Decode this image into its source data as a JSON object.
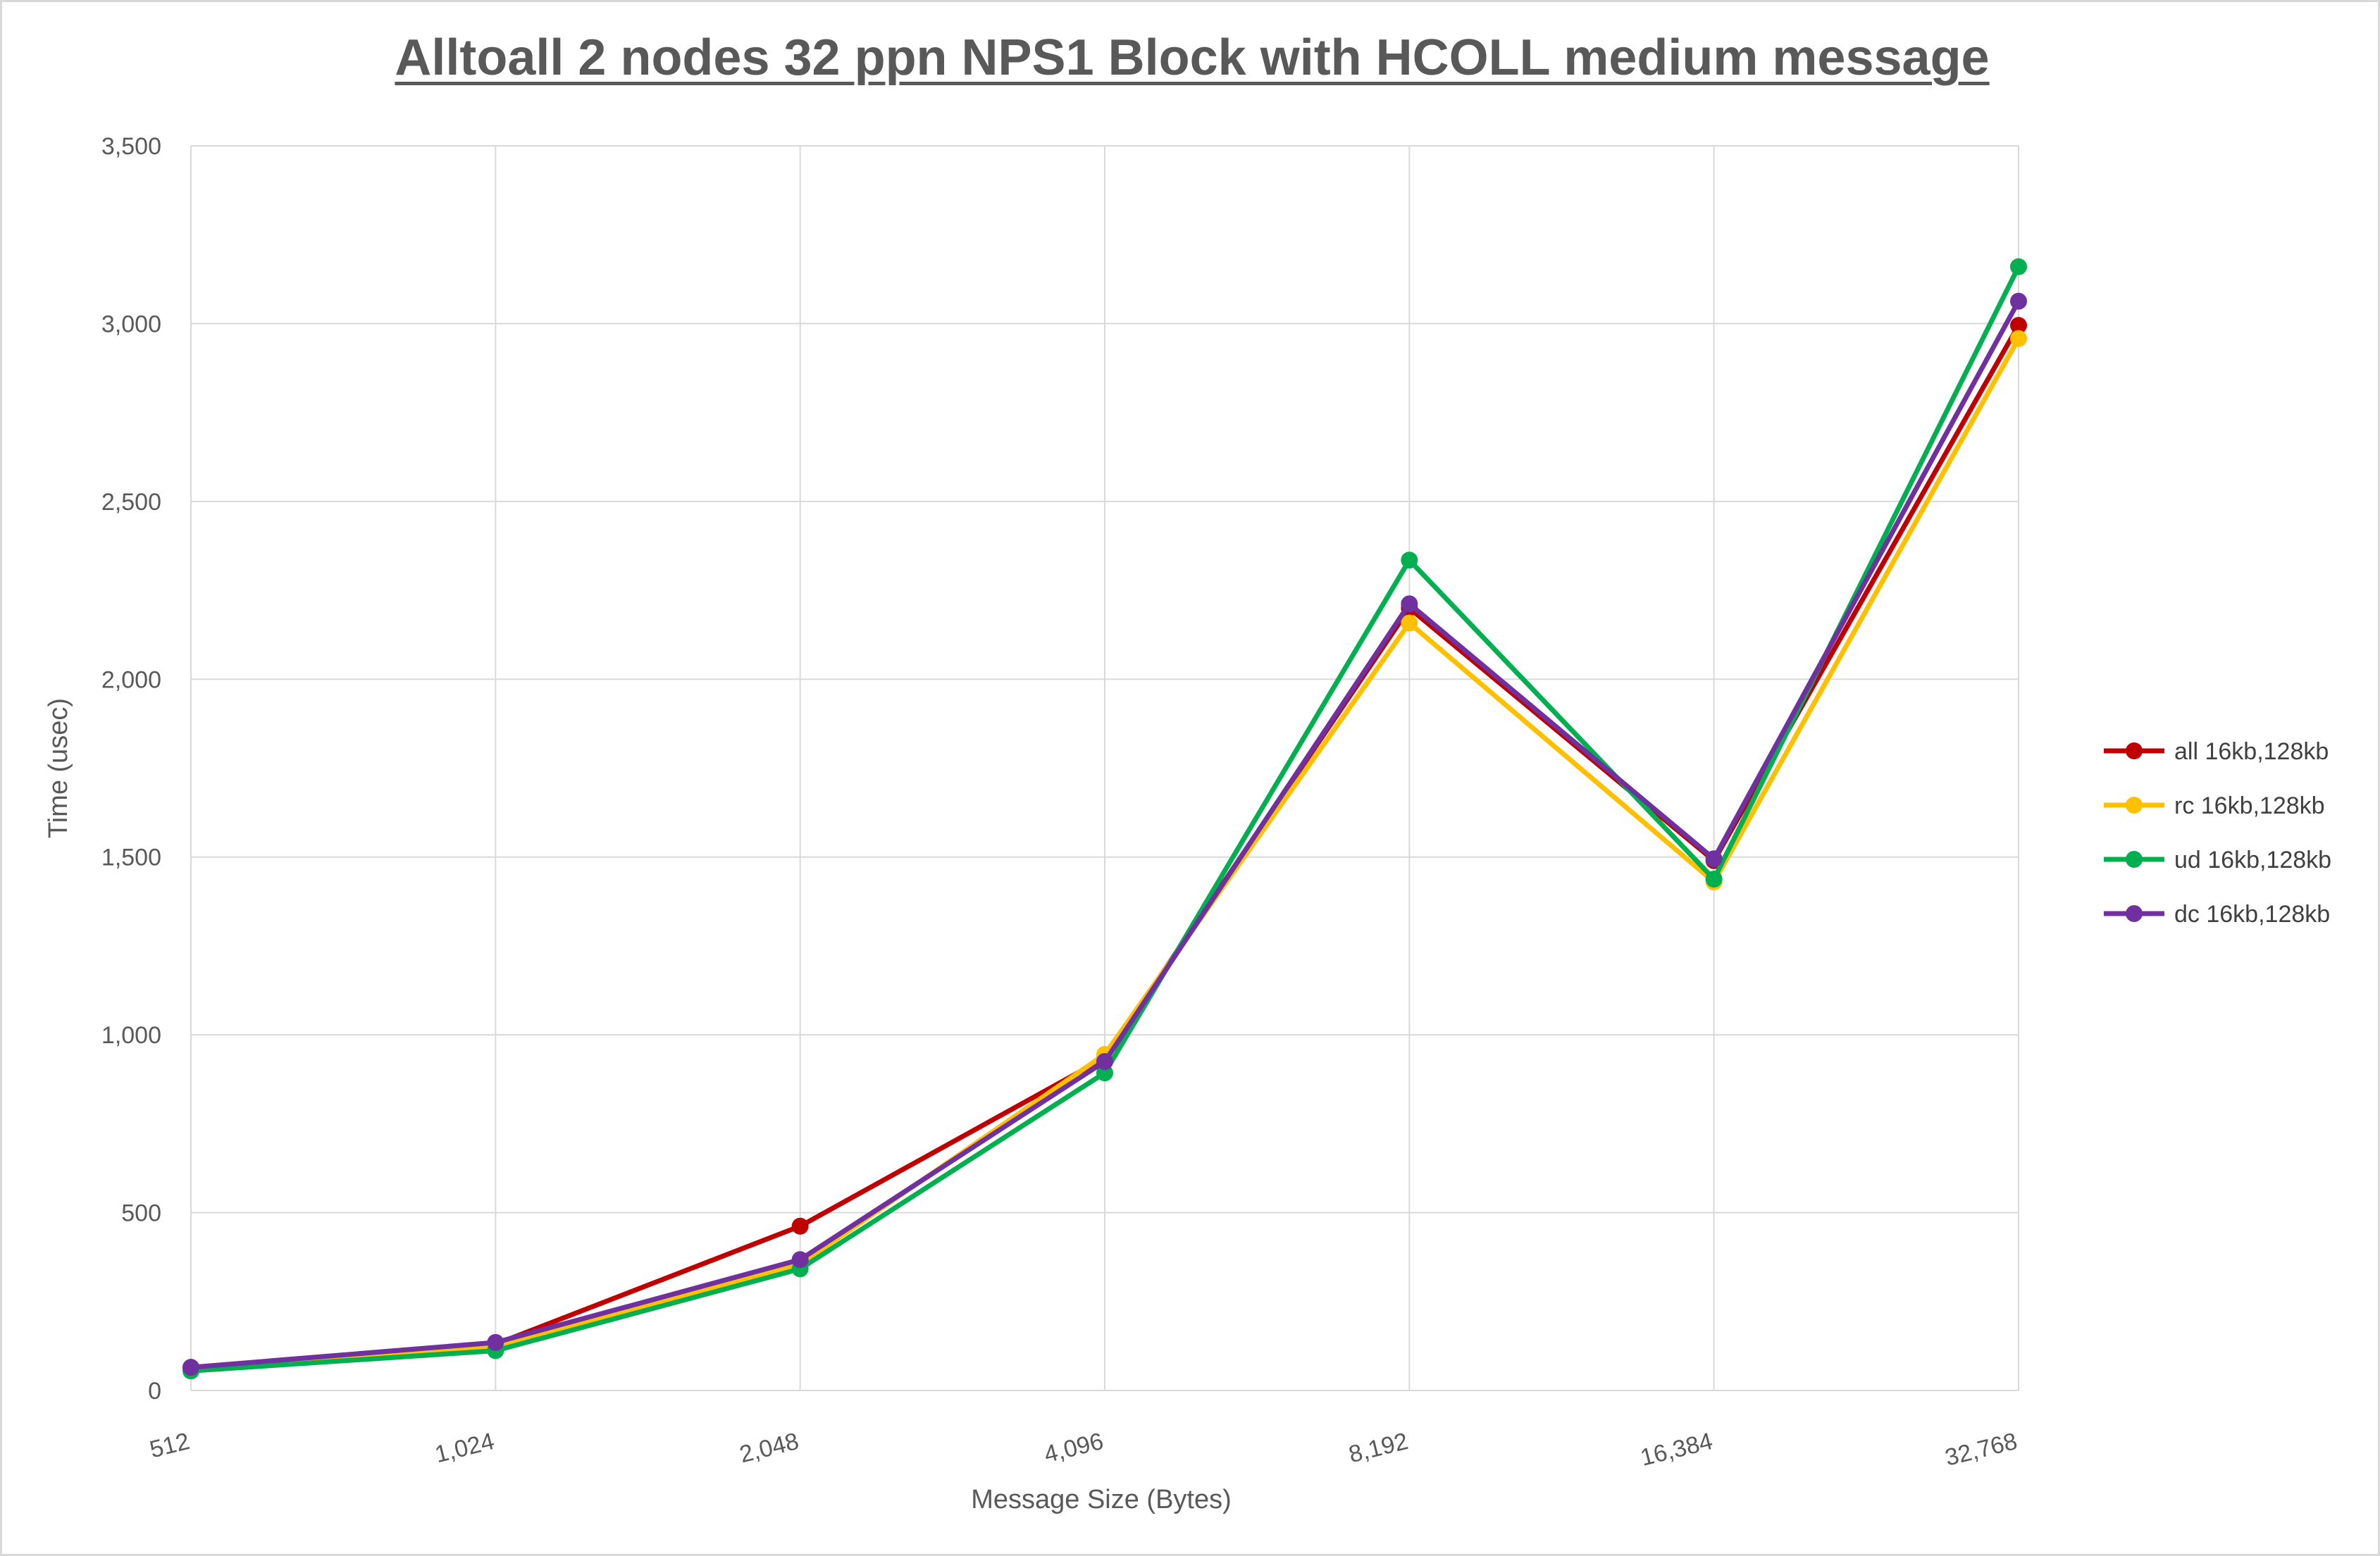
{
  "chart_data": {
    "type": "line",
    "title": "Alltoall 2 nodes 32 ppn NPS1 Block with HCOLL medium message",
    "xlabel": "Message Size (Bytes)",
    "ylabel": "Time (usec)",
    "categories": [
      "512",
      "1,024",
      "2,048",
      "4,096",
      "8,192",
      "16,384",
      "32,768"
    ],
    "ylim": [
      0,
      3500
    ],
    "yticks": [
      0,
      500,
      1000,
      1500,
      2000,
      2500,
      3000,
      3500
    ],
    "ytick_labels": [
      "0",
      "500",
      "1,000",
      "1,500",
      "2,000",
      "2,500",
      "3,000",
      "3,500"
    ],
    "grid": "on",
    "legend_position": "right",
    "series": [
      {
        "name": "all 16kb,128kb",
        "color": "#C00000",
        "values": [
          65,
          130,
          462,
          935,
          2200,
          1490,
          2995
        ]
      },
      {
        "name": "rc 16kb,128kb",
        "color": "#FFC000",
        "values": [
          60,
          125,
          355,
          945,
          2158,
          1430,
          2958
        ]
      },
      {
        "name": "ud 16kb,128kb",
        "color": "#00B050",
        "values": [
          55,
          112,
          342,
          893,
          2335,
          1438,
          3160
        ]
      },
      {
        "name": "dc 16kb,128kb",
        "color": "#7030A0",
        "values": [
          65,
          135,
          368,
          925,
          2212,
          1495,
          3063
        ]
      }
    ]
  }
}
